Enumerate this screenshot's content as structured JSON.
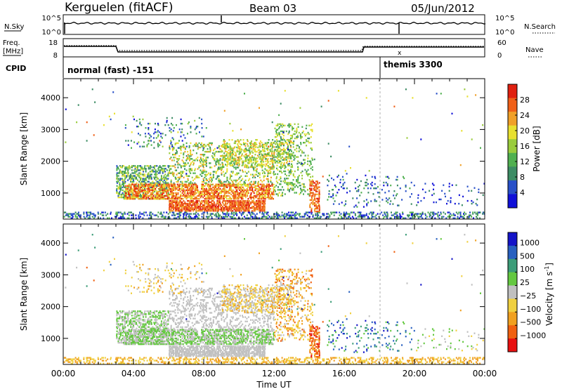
{
  "header": {
    "station": "Kerguelen (fitACF)",
    "beam": "Beam 03",
    "date": "05/Jun/2012"
  },
  "status_panel": {
    "nsky_label": "N.Sky",
    "nsearch_label": "N.Search",
    "nsky_ticks": [
      "10^5",
      "10^0"
    ],
    "nsearch_ticks": [
      "10^5",
      "10^0"
    ],
    "freq_label_1": "Freq.",
    "freq_label_2": "[MHz]",
    "freq_ticks": [
      "18",
      "8"
    ],
    "nave_label": "Nave",
    "nave_ticks": [
      "60",
      "0"
    ],
    "cpid_label": "CPID",
    "cpid_modes": [
      {
        "name": "normal (fast) -151",
        "start_hour": 0,
        "end_hour": 18
      },
      {
        "name": "themis 3300",
        "start_hour": 18,
        "end_hour": 24
      }
    ]
  },
  "chart_data": [
    {
      "type": "heatmap",
      "name": "power",
      "x_range_hours": [
        0,
        24
      ],
      "ylim": [
        180,
        4600
      ],
      "ylabel": "Slant Range [km]",
      "yticks": [
        1000,
        2000,
        3000,
        4000
      ],
      "colorbar_label": "Power [dB]",
      "colorbar_ticks": [
        4,
        8,
        12,
        16,
        20,
        24,
        28
      ],
      "colorbar_range": [
        0,
        32
      ],
      "colorbar_colors": [
        "#1010d8",
        "#2850c8",
        "#3c8c64",
        "#50b050",
        "#9acc3c",
        "#e8e030",
        "#f0a028",
        "#f06018",
        "#e02010"
      ]
    },
    {
      "type": "heatmap",
      "name": "velocity",
      "x_range_hours": [
        0,
        24
      ],
      "ylim": [
        180,
        4600
      ],
      "ylabel": "Slant Range [km]",
      "yticks": [
        1000,
        2000,
        3000,
        4000
      ],
      "colorbar_label": "Velocity [m s^-1]",
      "colorbar_ticks": [
        "1000",
        "500",
        "100",
        "25",
        "−25",
        "−100",
        "−500",
        "−1000"
      ],
      "colorbar_colors": [
        "#1414c8",
        "#2860c0",
        "#3c9c78",
        "#64c840",
        "#c0c0c0",
        "#f0d040",
        "#f0a020",
        "#f06010",
        "#e81010"
      ]
    }
  ],
  "x_axis": {
    "label": "Time UT",
    "ticks": [
      "00:00",
      "04:00",
      "08:00",
      "12:00",
      "16:00",
      "20:00",
      "00:00"
    ]
  }
}
